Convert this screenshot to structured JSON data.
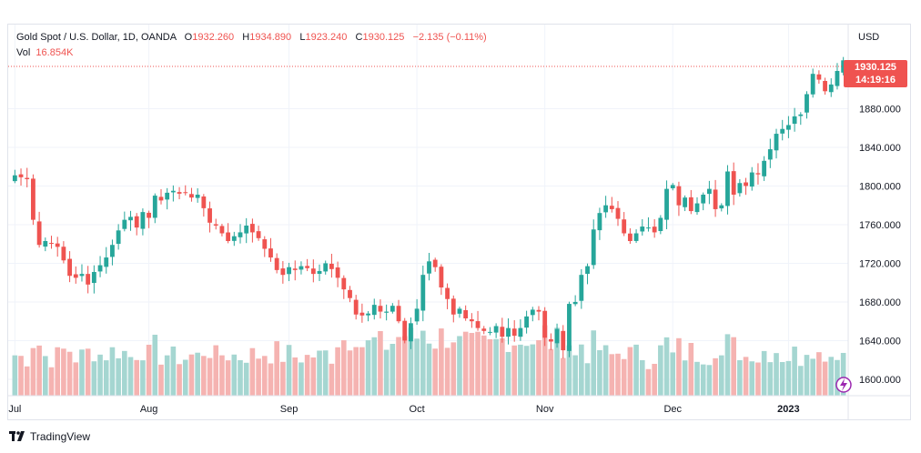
{
  "legend": {
    "symbol": "Gold Spot / U.S. Dollar, 1D, OANDA",
    "open_label": "O",
    "open": "1932.260",
    "high_label": "H",
    "high": "1934.890",
    "low_label": "L",
    "low": "1923.240",
    "close_label": "C",
    "close": "1930.125",
    "change": "−2.135 (−0.11%)",
    "vol_label": "Vol",
    "vol": "16.854K"
  },
  "currency": "USD",
  "last_price": {
    "price": "1930.125",
    "countdown": "14:19:16"
  },
  "footer": {
    "brand": "TradingView"
  },
  "colors": {
    "up": "#26a69a",
    "down": "#ef5350",
    "up_vol": "#a5d6d1",
    "down_vol": "#f5b3b1",
    "grid": "#f0f3fa"
  },
  "chart_data": {
    "type": "candlestick",
    "title": "Gold Spot / U.S. Dollar, 1D, OANDA",
    "y_ticks": [
      1600,
      1640,
      1680,
      1720,
      1760,
      1800,
      1840,
      1880
    ],
    "y_tick_labels": [
      "1600.000",
      "1640.000",
      "1680.000",
      "1720.000",
      "1760.000",
      "1800.000",
      "1840.000",
      "1880.000"
    ],
    "ylim": [
      1583,
      1967
    ],
    "x_labels": [
      {
        "label": "Jul",
        "index": 0
      },
      {
        "label": "Aug",
        "index": 22
      },
      {
        "label": "Sep",
        "index": 45
      },
      {
        "label": "Oct",
        "index": 66
      },
      {
        "label": "Nov",
        "index": 87
      },
      {
        "label": "Dec",
        "index": 108
      },
      {
        "label": "2023",
        "index": 127
      }
    ],
    "close": [
      1811,
      1809,
      1807,
      1765,
      1739,
      1743,
      1741,
      1737,
      1723,
      1707,
      1705,
      1709,
      1698,
      1711,
      1718,
      1726,
      1739,
      1754,
      1765,
      1768,
      1757,
      1773,
      1767,
      1790,
      1785,
      1793,
      1795,
      1792,
      1793,
      1788,
      1791,
      1777,
      1762,
      1759,
      1751,
      1743,
      1748,
      1752,
      1759,
      1752,
      1746,
      1735,
      1726,
      1713,
      1708,
      1716,
      1713,
      1717,
      1715,
      1709,
      1712,
      1720,
      1714,
      1705,
      1693,
      1684,
      1667,
      1666,
      1668,
      1677,
      1670,
      1670,
      1676,
      1660,
      1640,
      1658,
      1673,
      1708,
      1722,
      1716,
      1695,
      1683,
      1667,
      1673,
      1663,
      1660,
      1653,
      1650,
      1649,
      1655,
      1644,
      1653,
      1645,
      1653,
      1665,
      1672,
      1670,
      1643,
      1639,
      1652,
      1630,
      1678,
      1680,
      1708,
      1717,
      1755,
      1772,
      1780,
      1776,
      1766,
      1751,
      1743,
      1751,
      1758,
      1757,
      1752,
      1767,
      1797,
      1801,
      1780,
      1788,
      1774,
      1782,
      1791,
      1797,
      1776,
      1780,
      1815,
      1791,
      1803,
      1800,
      1814,
      1812,
      1826,
      1838,
      1854,
      1859,
      1863,
      1872,
      1874,
      1895,
      1916,
      1910,
      1898,
      1905,
      1919,
      1930
    ],
    "up_color": "#26a69a",
    "down_color": "#ef5350"
  }
}
